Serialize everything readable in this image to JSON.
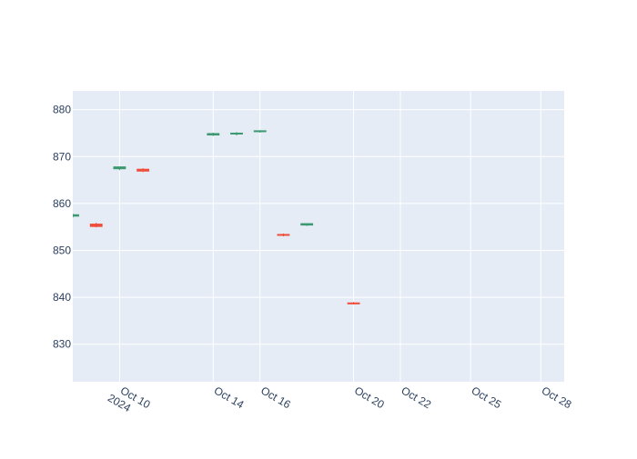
{
  "chart_data": {
    "type": "candlestick",
    "title": "",
    "xlabel": "",
    "ylabel": "",
    "ylim": [
      822,
      884
    ],
    "y_ticks": [
      830,
      840,
      850,
      860,
      870,
      880
    ],
    "x_range": [
      "2024-10-08",
      "2024-10-29"
    ],
    "x_ticks": [
      {
        "date": "2024-10-10",
        "label": "Oct 10",
        "sublabel": "2024"
      },
      {
        "date": "2024-10-14",
        "label": "Oct 14",
        "sublabel": ""
      },
      {
        "date": "2024-10-16",
        "label": "Oct 16",
        "sublabel": ""
      },
      {
        "date": "2024-10-20",
        "label": "Oct 20",
        "sublabel": ""
      },
      {
        "date": "2024-10-22",
        "label": "Oct 22",
        "sublabel": ""
      },
      {
        "date": "2024-10-25",
        "label": "Oct 25",
        "sublabel": ""
      },
      {
        "date": "2024-10-28",
        "label": "Oct 28",
        "sublabel": ""
      }
    ],
    "grid": true,
    "colors": {
      "increasing": "#3d9970",
      "decreasing": "#ef4d3b",
      "plot_background": "#e5ecf6",
      "grid": "#ffffff",
      "tick_text": "#2a3f5f"
    },
    "candles": [
      {
        "date": "2024-10-08",
        "open": 857.3,
        "high": 857.8,
        "low": 857.0,
        "close": 857.6
      },
      {
        "date": "2024-10-09",
        "open": 855.6,
        "high": 855.9,
        "low": 854.9,
        "close": 855.1
      },
      {
        "date": "2024-10-10",
        "open": 867.4,
        "high": 867.9,
        "low": 867.1,
        "close": 867.8
      },
      {
        "date": "2024-10-11",
        "open": 867.3,
        "high": 867.5,
        "low": 866.7,
        "close": 866.9
      },
      {
        "date": "2024-10-14",
        "open": 874.6,
        "high": 875.1,
        "low": 874.4,
        "close": 874.9
      },
      {
        "date": "2024-10-15",
        "open": 874.8,
        "high": 875.2,
        "low": 874.5,
        "close": 875.0
      },
      {
        "date": "2024-10-16",
        "open": 875.3,
        "high": 875.6,
        "low": 875.1,
        "close": 875.5
      },
      {
        "date": "2024-10-17",
        "open": 853.4,
        "high": 853.6,
        "low": 853.0,
        "close": 853.2
      },
      {
        "date": "2024-10-18",
        "open": 855.4,
        "high": 855.8,
        "low": 855.2,
        "close": 855.7
      },
      {
        "date": "2024-10-20",
        "open": 838.8,
        "high": 839.0,
        "low": 838.5,
        "close": 838.6
      }
    ]
  }
}
